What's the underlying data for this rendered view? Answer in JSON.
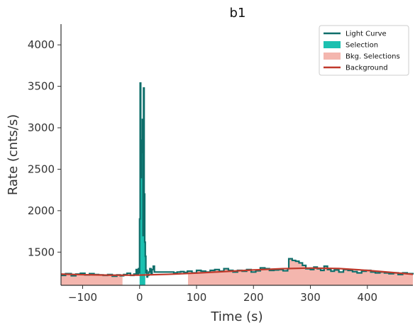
{
  "chart_data": {
    "type": "line",
    "title": "b1",
    "xlabel": "Time (s)",
    "ylabel": "Rate (cnts/s)",
    "xlim": [
      -138,
      480
    ],
    "ylim": [
      1100,
      4250
    ],
    "xticks": [
      -100,
      0,
      100,
      200,
      300,
      400
    ],
    "yticks": [
      1500,
      2000,
      2500,
      3000,
      3500,
      4000
    ],
    "grid": false,
    "legend_position": "top-right",
    "legend": [
      {
        "label": "Light Curve",
        "kind": "line",
        "color": "#0e6e6a"
      },
      {
        "label": "Selection",
        "kind": "patch",
        "color": "#1cc0b0"
      },
      {
        "label": "Bkg. Selections",
        "kind": "patch",
        "color": "#f4b6ae"
      },
      {
        "label": "Background",
        "kind": "line",
        "color": "#c0392b"
      }
    ],
    "light_curve": {
      "x": [
        -138,
        -130,
        -120,
        -112,
        -104,
        -96,
        -88,
        -80,
        -72,
        -64,
        -56,
        -48,
        -40,
        -34,
        -28,
        -22,
        -16,
        -10,
        -6,
        -4,
        -2,
        -1,
        0,
        1,
        2,
        3,
        4,
        5,
        6,
        7,
        8,
        9,
        10,
        11,
        12,
        13,
        14,
        16,
        18,
        20,
        22,
        24,
        26,
        60,
        66,
        72,
        78,
        84,
        92,
        100,
        108,
        116,
        124,
        132,
        140,
        148,
        156,
        164,
        172,
        180,
        188,
        196,
        204,
        212,
        220,
        228,
        236,
        244,
        252,
        260,
        262,
        268,
        274,
        280,
        286,
        292,
        300,
        306,
        312,
        318,
        324,
        330,
        336,
        342,
        350,
        358,
        366,
        374,
        382,
        390,
        398,
        406,
        414,
        422,
        430,
        438,
        446,
        454,
        462,
        470,
        480
      ],
      "y": [
        1220,
        1240,
        1215,
        1235,
        1245,
        1225,
        1240,
        1230,
        1225,
        1220,
        1230,
        1210,
        1225,
        1215,
        1230,
        1245,
        1220,
        1235,
        1290,
        1230,
        1300,
        1250,
        1900,
        3540,
        2400,
        2850,
        2700,
        3100,
        1700,
        3480,
        2200,
        1620,
        1450,
        1250,
        1280,
        1200,
        1220,
        1260,
        1300,
        1230,
        1290,
        1330,
        1260,
        1250,
        1260,
        1265,
        1255,
        1270,
        1250,
        1280,
        1270,
        1260,
        1280,
        1290,
        1270,
        1300,
        1280,
        1260,
        1280,
        1270,
        1290,
        1260,
        1275,
        1310,
        1300,
        1280,
        1285,
        1290,
        1275,
        1300,
        1420,
        1400,
        1390,
        1370,
        1340,
        1300,
        1290,
        1320,
        1300,
        1280,
        1330,
        1290,
        1270,
        1285,
        1260,
        1290,
        1280,
        1265,
        1250,
        1270,
        1280,
        1260,
        1250,
        1260,
        1250,
        1240,
        1250,
        1230,
        1250,
        1240,
        1250
      ]
    },
    "selection": {
      "x": [
        0,
        10
      ]
    },
    "bkg_selections": [
      {
        "x": [
          -138,
          -30
        ]
      },
      {
        "x": [
          85,
          480
        ]
      }
    ],
    "background": {
      "x": [
        -138,
        -100,
        -50,
        0,
        50,
        100,
        150,
        200,
        250,
        300,
        350,
        400,
        450,
        480
      ],
      "y": [
        1235,
        1228,
        1222,
        1223,
        1232,
        1247,
        1266,
        1285,
        1300,
        1308,
        1302,
        1280,
        1251,
        1232
      ]
    },
    "colors": {
      "light_curve": "#0e6e6a",
      "selection": "#1cc0b0",
      "bkg_selections": "#f4b6ae",
      "background": "#c0392b"
    }
  }
}
